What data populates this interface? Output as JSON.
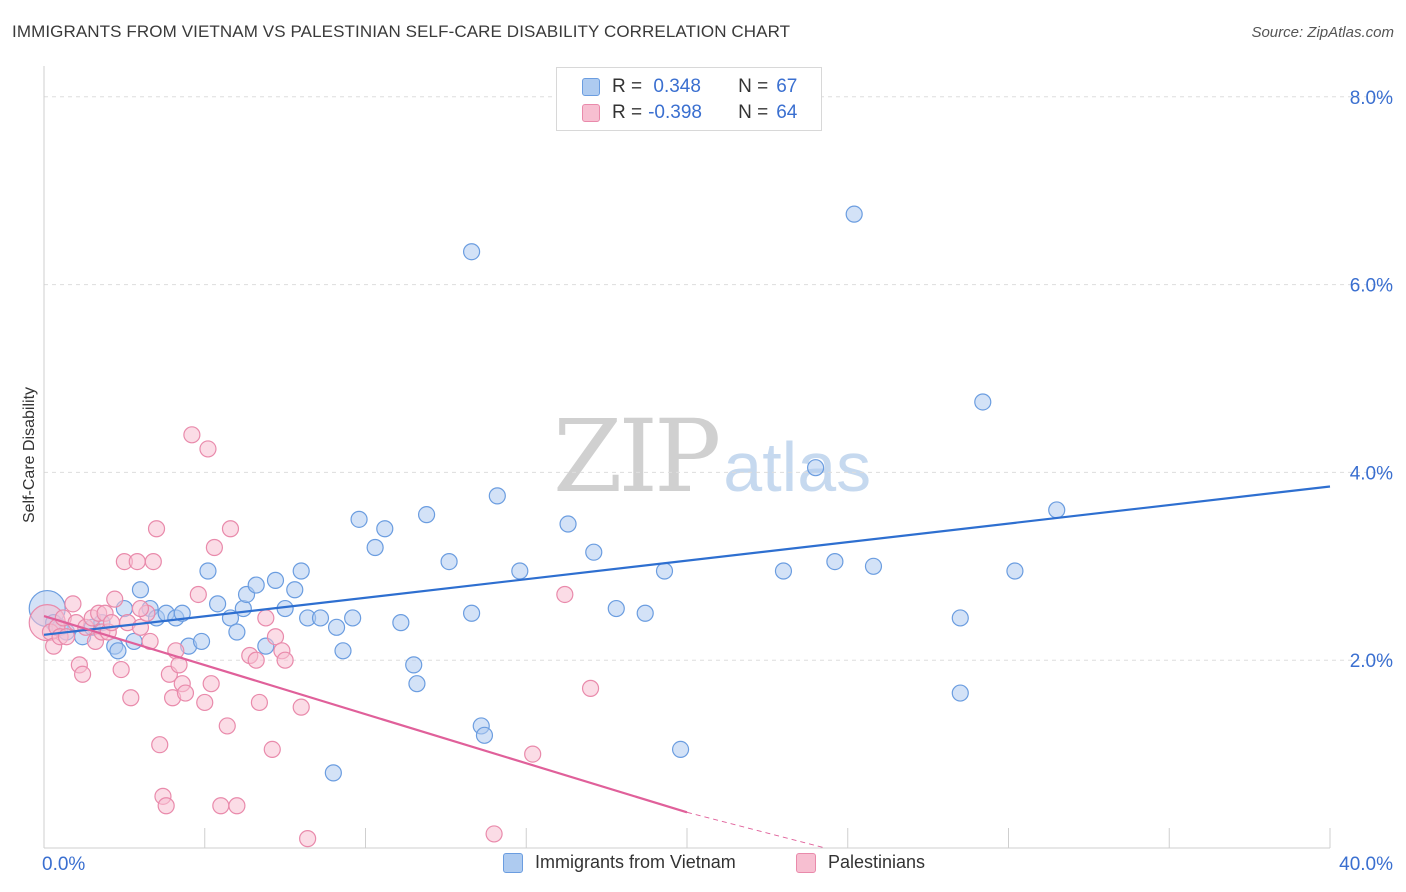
{
  "header": {
    "title": "IMMIGRANTS FROM VIETNAM VS PALESTINIAN SELF-CARE DISABILITY CORRELATION CHART",
    "source": "Source: ZipAtlas.com"
  },
  "watermark": {
    "zip": "ZIP",
    "atlas": "atlas"
  },
  "legend": {
    "r_label": "R =",
    "n_label": "N =",
    "rows": [
      {
        "r": " 0.348",
        "n": "67"
      },
      {
        "r": "-0.398",
        "n": "64"
      }
    ]
  },
  "colors": {
    "blue_fill": "#aecbf0",
    "blue_stroke": "#6b9de0",
    "blue_line": "#2e6fd0",
    "pink_fill": "#f7bfd1",
    "pink_stroke": "#e98aab",
    "pink_line": "#e0609a",
    "tick_label": "#3a6fd0",
    "grid": "#dddddd"
  },
  "chart_data": {
    "type": "scatter",
    "title": "IMMIGRANTS FROM VIETNAM VS PALESTINIAN SELF-CARE DISABILITY CORRELATION CHART",
    "ylabel": "Self-Care Disability",
    "xlabel": "",
    "xlim": [
      0,
      40
    ],
    "ylim": [
      0,
      8.2
    ],
    "x_tick_labels": [
      {
        "value": 0,
        "label": "0.0%"
      },
      {
        "value": 40,
        "label": "40.0%"
      }
    ],
    "y_tick_labels": [
      {
        "value": 2,
        "label": "2.0%"
      },
      {
        "value": 4,
        "label": "4.0%"
      },
      {
        "value": 6,
        "label": "6.0%"
      },
      {
        "value": 8,
        "label": "8.0%"
      }
    ],
    "grid": true,
    "legend_position": "top-center",
    "series": [
      {
        "name": "Immigrants from Vietnam",
        "color": "#6b9de0",
        "r": 0.348,
        "n": 67,
        "trend": {
          "x": [
            0,
            40
          ],
          "y": [
            2.27,
            3.85
          ]
        },
        "points": [
          [
            0.1,
            2.55,
            "L"
          ],
          [
            0.3,
            2.4
          ],
          [
            0.5,
            2.35
          ],
          [
            0.7,
            2.3
          ],
          [
            1.2,
            2.25
          ],
          [
            1.5,
            2.35
          ],
          [
            1.8,
            2.4
          ],
          [
            2.2,
            2.15
          ],
          [
            2.3,
            2.1
          ],
          [
            2.5,
            2.55
          ],
          [
            2.8,
            2.2
          ],
          [
            3.0,
            2.75
          ],
          [
            3.3,
            2.55
          ],
          [
            3.5,
            2.45
          ],
          [
            3.8,
            2.5
          ],
          [
            4.1,
            2.45
          ],
          [
            4.3,
            2.5
          ],
          [
            4.5,
            2.15
          ],
          [
            4.9,
            2.2
          ],
          [
            5.1,
            2.95
          ],
          [
            5.4,
            2.6
          ],
          [
            5.8,
            2.45
          ],
          [
            6.0,
            2.3
          ],
          [
            6.2,
            2.55
          ],
          [
            6.3,
            2.7
          ],
          [
            6.6,
            2.8
          ],
          [
            6.9,
            2.15
          ],
          [
            7.2,
            2.85
          ],
          [
            7.5,
            2.55
          ],
          [
            7.8,
            2.75
          ],
          [
            8.0,
            2.95
          ],
          [
            8.2,
            2.45
          ],
          [
            8.6,
            2.45
          ],
          [
            9.1,
            2.35
          ],
          [
            9.3,
            2.1
          ],
          [
            9.6,
            2.45
          ],
          [
            9.8,
            3.5
          ],
          [
            10.3,
            3.2
          ],
          [
            10.6,
            3.4
          ],
          [
            11.1,
            2.4
          ],
          [
            11.5,
            1.95
          ],
          [
            11.6,
            1.75
          ],
          [
            11.9,
            3.55
          ],
          [
            12.6,
            3.05
          ],
          [
            13.3,
            6.35
          ],
          [
            13.3,
            2.5
          ],
          [
            13.6,
            1.3
          ],
          [
            13.7,
            1.2
          ],
          [
            14.1,
            3.75
          ],
          [
            14.8,
            2.95
          ],
          [
            16.3,
            3.45
          ],
          [
            17.1,
            3.15
          ],
          [
            17.8,
            2.55
          ],
          [
            18.7,
            2.5
          ],
          [
            19.3,
            2.95
          ],
          [
            19.8,
            1.05
          ],
          [
            23.0,
            2.95
          ],
          [
            24.0,
            4.05
          ],
          [
            24.6,
            3.05
          ],
          [
            25.2,
            6.75
          ],
          [
            25.8,
            3.0
          ],
          [
            28.5,
            2.45
          ],
          [
            28.5,
            1.65
          ],
          [
            29.2,
            4.75
          ],
          [
            30.2,
            2.95
          ],
          [
            31.5,
            3.6
          ],
          [
            9.0,
            0.8
          ]
        ]
      },
      {
        "name": "Palestinians",
        "color": "#e98aab",
        "r": -0.398,
        "n": 64,
        "trend": {
          "x": [
            0,
            20
          ],
          "y": [
            2.47,
            0.38
          ]
        },
        "trend_dashed": {
          "x": [
            20,
            24.3
          ],
          "y": [
            0.38,
            0.0
          ]
        },
        "points": [
          [
            0.1,
            2.4,
            "L"
          ],
          [
            0.2,
            2.3
          ],
          [
            0.3,
            2.15
          ],
          [
            0.4,
            2.35
          ],
          [
            0.5,
            2.25
          ],
          [
            0.6,
            2.45
          ],
          [
            0.7,
            2.25
          ],
          [
            0.9,
            2.6
          ],
          [
            1.0,
            2.4
          ],
          [
            1.1,
            1.95
          ],
          [
            1.2,
            1.85
          ],
          [
            1.3,
            2.35
          ],
          [
            1.5,
            2.45
          ],
          [
            1.6,
            2.2
          ],
          [
            1.7,
            2.5
          ],
          [
            1.8,
            2.3
          ],
          [
            1.9,
            2.5
          ],
          [
            2.0,
            2.3
          ],
          [
            2.1,
            2.4
          ],
          [
            2.2,
            2.65
          ],
          [
            2.4,
            1.9
          ],
          [
            2.5,
            3.05
          ],
          [
            2.6,
            2.4
          ],
          [
            2.7,
            1.6
          ],
          [
            2.9,
            3.05
          ],
          [
            3.0,
            2.35
          ],
          [
            3.2,
            2.5
          ],
          [
            3.3,
            2.2
          ],
          [
            3.4,
            3.05
          ],
          [
            3.5,
            3.4
          ],
          [
            3.6,
            1.1
          ],
          [
            3.7,
            0.55
          ],
          [
            3.8,
            0.45
          ],
          [
            3.9,
            1.85
          ],
          [
            4.0,
            1.6
          ],
          [
            4.1,
            2.1
          ],
          [
            4.2,
            1.95
          ],
          [
            4.3,
            1.75
          ],
          [
            4.4,
            1.65
          ],
          [
            4.6,
            4.4
          ],
          [
            4.8,
            2.7
          ],
          [
            5.0,
            1.55
          ],
          [
            5.1,
            4.25
          ],
          [
            5.2,
            1.75
          ],
          [
            5.3,
            3.2
          ],
          [
            5.5,
            0.45
          ],
          [
            5.7,
            1.3
          ],
          [
            5.8,
            3.4
          ],
          [
            6.0,
            0.45
          ],
          [
            6.4,
            2.05
          ],
          [
            6.6,
            2.0
          ],
          [
            6.7,
            1.55
          ],
          [
            6.9,
            2.45
          ],
          [
            7.1,
            1.05
          ],
          [
            7.2,
            2.25
          ],
          [
            7.4,
            2.1
          ],
          [
            7.5,
            2.0
          ],
          [
            8.0,
            1.5
          ],
          [
            8.2,
            0.1
          ],
          [
            14.0,
            0.15
          ],
          [
            15.2,
            1.0
          ],
          [
            16.2,
            2.7
          ],
          [
            17.0,
            1.7
          ],
          [
            3.0,
            2.55
          ]
        ]
      }
    ]
  }
}
